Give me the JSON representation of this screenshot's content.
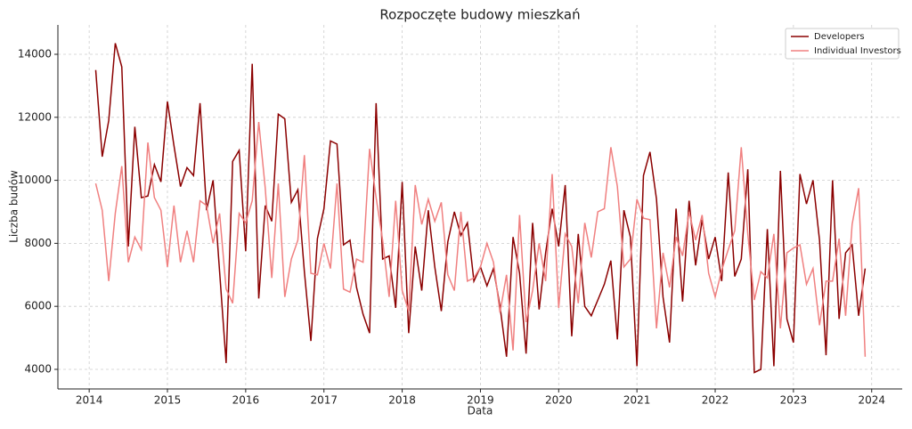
{
  "chart_data": {
    "type": "line",
    "title": "Rozpoczęte budowy mieszkań",
    "x_label": "Data",
    "y_label": "Liczba budów",
    "x": [
      "2014-02",
      "2014-03",
      "2014-04",
      "2014-05",
      "2014-06",
      "2014-07",
      "2014-08",
      "2014-09",
      "2014-10",
      "2014-11",
      "2014-12",
      "2015-01",
      "2015-02",
      "2015-03",
      "2015-04",
      "2015-05",
      "2015-06",
      "2015-07",
      "2015-08",
      "2015-09",
      "2015-10",
      "2015-11",
      "2015-12",
      "2016-01",
      "2016-02",
      "2016-03",
      "2016-04",
      "2016-05",
      "2016-06",
      "2016-07",
      "2016-08",
      "2016-09",
      "2016-10",
      "2016-11",
      "2016-12",
      "2017-01",
      "2017-02",
      "2017-03",
      "2017-04",
      "2017-05",
      "2017-06",
      "2017-07",
      "2017-08",
      "2017-09",
      "2017-10",
      "2017-11",
      "2017-12",
      "2018-01",
      "2018-02",
      "2018-03",
      "2018-04",
      "2018-05",
      "2018-06",
      "2018-07",
      "2018-08",
      "2018-09",
      "2018-10",
      "2018-11",
      "2018-12",
      "2019-01",
      "2019-02",
      "2019-03",
      "2019-04",
      "2019-05",
      "2019-06",
      "2019-07",
      "2019-08",
      "2019-09",
      "2019-10",
      "2019-11",
      "2019-12",
      "2020-01",
      "2020-02",
      "2020-03",
      "2020-04",
      "2020-05",
      "2020-06",
      "2020-07",
      "2020-08",
      "2020-09",
      "2020-10",
      "2020-11",
      "2020-12",
      "2021-01",
      "2021-02",
      "2021-03",
      "2021-04",
      "2021-05",
      "2021-06",
      "2021-07",
      "2021-08",
      "2021-09",
      "2021-10",
      "2021-11",
      "2021-12",
      "2022-01",
      "2022-02",
      "2022-03",
      "2022-04",
      "2022-05",
      "2022-06",
      "2022-07",
      "2022-08",
      "2022-09",
      "2022-10",
      "2022-11",
      "2022-12",
      "2023-01",
      "2023-02",
      "2023-03",
      "2023-04",
      "2023-05",
      "2023-06",
      "2023-07",
      "2023-08",
      "2023-09",
      "2023-10",
      "2023-11",
      "2023-12"
    ],
    "series": [
      {
        "name": "Developers",
        "color": "#8b0000",
        "values": [
          13500,
          10750,
          11900,
          14350,
          13600,
          7900,
          11700,
          9450,
          9500,
          10500,
          9950,
          12500,
          11100,
          9800,
          10400,
          10150,
          12450,
          9050,
          10000,
          7100,
          4200,
          10600,
          10950,
          7750,
          13700,
          6250,
          9200,
          8700,
          12100,
          11950,
          9300,
          9700,
          7100,
          4900,
          8150,
          9100,
          11250,
          11150,
          7950,
          8100,
          6600,
          5750,
          5150,
          12450,
          7500,
          7600,
          5950,
          9950,
          5150,
          7900,
          6500,
          9050,
          7250,
          5850,
          8050,
          9000,
          8250,
          8650,
          6800,
          7250,
          6650,
          7200,
          6000,
          4400,
          8200,
          7050,
          4500,
          8650,
          5900,
          7700,
          9100,
          7900,
          9850,
          5050,
          8300,
          6000,
          5700,
          6200,
          6700,
          7450,
          4950,
          9050,
          8200,
          4100,
          10150,
          10900,
          9400,
          6300,
          4850,
          9100,
          6150,
          9350,
          7300,
          8750,
          7500,
          8200,
          6800,
          10250,
          6950,
          7500,
          10350,
          3900,
          4000,
          8450,
          4100,
          10300,
          5600,
          4850,
          10200,
          9250,
          10000,
          8100,
          4450,
          10000,
          5600,
          7700,
          7950,
          5700,
          7200
        ]
      },
      {
        "name": "Individual Investors",
        "color": "#f08080",
        "values": [
          9900,
          9050,
          6800,
          8950,
          10450,
          7400,
          8200,
          7800,
          11200,
          9450,
          9050,
          7250,
          9200,
          7400,
          8400,
          7400,
          9350,
          9200,
          8000,
          8950,
          6550,
          6100,
          8950,
          8650,
          9350,
          11850,
          9750,
          6900,
          9900,
          6300,
          7500,
          8100,
          10800,
          7050,
          7000,
          8000,
          7200,
          9900,
          6550,
          6450,
          7500,
          7400,
          11000,
          9450,
          8100,
          6300,
          9350,
          6500,
          5850,
          9850,
          8600,
          9400,
          8700,
          9300,
          7000,
          6500,
          9000,
          6800,
          6900,
          7250,
          8000,
          7400,
          5800,
          7000,
          4600,
          8900,
          5500,
          6500,
          8000,
          6800,
          10200,
          5950,
          8300,
          7900,
          6100,
          8650,
          7550,
          9000,
          9100,
          11050,
          9800,
          7250,
          7500,
          9400,
          8800,
          8750,
          5300,
          7700,
          6600,
          8200,
          7600,
          9000,
          8100,
          8900,
          7050,
          6300,
          7150,
          7800,
          8400,
          11050,
          8300,
          6200,
          7100,
          6900,
          8300,
          5300,
          7700,
          7850,
          7950,
          6700,
          7200,
          5400,
          6800,
          6800,
          8150,
          5700,
          8600,
          9750,
          4400
        ]
      }
    ],
    "xlim": [
      2013.6,
      2024.39
    ],
    "xticks": [
      2014,
      2015,
      2016,
      2017,
      2018,
      2019,
      2020,
      2021,
      2022,
      2023,
      2024
    ],
    "ylim": [
      3378,
      14932
    ],
    "yticks": [
      4000,
      6000,
      8000,
      10000,
      12000,
      14000
    ],
    "grid": true,
    "legend": "upper right"
  }
}
